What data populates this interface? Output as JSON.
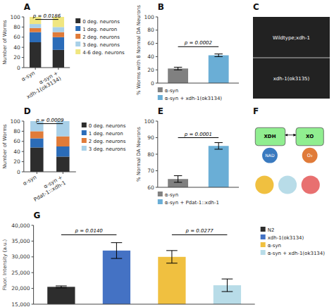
{
  "chart_data": [
    {
      "type": "bar",
      "title": "A",
      "stacked": true,
      "categories": [
        "α-syn",
        "α-syn +\nxdh-1(ok3134)"
      ],
      "series": [
        {
          "name": "0 deg. neurons",
          "color": "#2d2d2d",
          "values": [
            50,
            35
          ]
        },
        {
          "name": "1 deg. neuron",
          "color": "#2b6cb8",
          "values": [
            20,
            25
          ]
        },
        {
          "name": "2 deg. neurons",
          "color": "#e07b39",
          "values": [
            8,
            10
          ]
        },
        {
          "name": "3 deg. neurons",
          "color": "#a8d0e8",
          "values": [
            8,
            10
          ]
        },
        {
          "name": "4-6 deg. neurons",
          "color": "#f0e680",
          "values": [
            14,
            20
          ]
        }
      ],
      "ylabel": "Number of Worms",
      "ylim": [
        0,
        100
      ],
      "yticks": [
        0,
        20,
        40,
        60,
        80,
        100
      ],
      "grid": false,
      "legend": "right",
      "annotations": [
        {
          "text": "p = 0.0186",
          "y": 95
        }
      ]
    },
    {
      "type": "bar",
      "title": "B",
      "categories": [
        "α-syn",
        "α-syn + xdh-1(ok3134)"
      ],
      "values": [
        22,
        42
      ],
      "errors": [
        2,
        2
      ],
      "colors": [
        "#808080",
        "#6aaed6"
      ],
      "ylabel": "% Worms with 8 Normal DA Neurons",
      "ylim": [
        0,
        100
      ],
      "yticks": [
        0,
        20,
        40,
        60,
        80,
        100
      ],
      "grid": false,
      "tick_labels": "y",
      "legend": "bottom",
      "annotations": [
        {
          "text": "p = 0.0002",
          "y": 55
        }
      ]
    },
    {
      "type": "image",
      "title": "C",
      "annotations": [
        {
          "text": "Wildtype;xdh-1"
        },
        {
          "text": "xdh-1(ok3135)"
        }
      ]
    },
    {
      "type": "bar",
      "title": "D",
      "stacked": true,
      "categories": [
        "α-syn",
        "α-syn +\nPdat-1::xdh-1"
      ],
      "series": [
        {
          "name": "0 deg. neurons",
          "color": "#2d2d2d",
          "values": [
            48,
            30
          ]
        },
        {
          "name": "1 deg. neuron",
          "color": "#2b6cb8",
          "values": [
            18,
            20
          ]
        },
        {
          "name": "2 deg. neurons",
          "color": "#e07b39",
          "values": [
            14,
            20
          ]
        },
        {
          "name": "3 deg. neurons",
          "color": "#a8d0e8",
          "values": [
            20,
            30
          ]
        }
      ],
      "ylabel": "Number of Worms",
      "ylim": [
        0,
        100
      ],
      "yticks": [
        0,
        20,
        40,
        60,
        80,
        100
      ],
      "grid": false,
      "legend": "right",
      "annotations": [
        {
          "text": "p = 0.0009",
          "y": 95
        }
      ]
    },
    {
      "type": "bar",
      "title": "E",
      "categories": [
        "α-syn",
        "α-syn + Pdat-1::xdh-1"
      ],
      "values": [
        65,
        85
      ],
      "errors": [
        2,
        2
      ],
      "colors": [
        "#808080",
        "#6aaed6"
      ],
      "ylabel": "% Normal DA Neurons",
      "ylim": [
        60,
        100
      ],
      "yticks": [
        60,
        70,
        80,
        90,
        100
      ],
      "grid": false,
      "tick_labels": "y",
      "legend": "bottom",
      "annotations": [
        {
          "text": "p = 0.0001",
          "y": 90
        }
      ]
    },
    {
      "type": "diagram",
      "title": "F",
      "annotations": [
        {
          "text": "XDH"
        },
        {
          "text": "XO"
        },
        {
          "text": "NAD"
        },
        {
          "text": "O₂"
        }
      ]
    },
    {
      "type": "bar",
      "title": "G",
      "categories": [
        "N2",
        "xdh-1(ok3134)",
        "α-syn",
        "α-syn + xdh-1(ok3134)"
      ],
      "values": [
        20500,
        32000,
        30000,
        21000
      ],
      "errors": [
        300,
        2500,
        2000,
        2000
      ],
      "colors": [
        "#2d2d2d",
        "#4472c4",
        "#f0c040",
        "#b8dce8"
      ],
      "ylabel": "Fluor. Intensity (a.u.)",
      "ylim": [
        15000,
        40000
      ],
      "yticks": [
        {
          "value": 15000,
          "label": "15,000"
        },
        {
          "value": 20000,
          "label": "20,000"
        },
        {
          "value": 25000,
          "label": "25,000"
        },
        {
          "value": 30000,
          "label": "30,000"
        },
        {
          "value": 35000,
          "label": "35,000"
        },
        {
          "value": 40000,
          "label": "40,000"
        }
      ],
      "grid": false,
      "tick_labels": "y",
      "legend": "right",
      "annotations": [
        {
          "text": "p = 0.0140",
          "y": 37000
        },
        {
          "text": "p = 0.0277",
          "y": 37000
        }
      ]
    }
  ]
}
